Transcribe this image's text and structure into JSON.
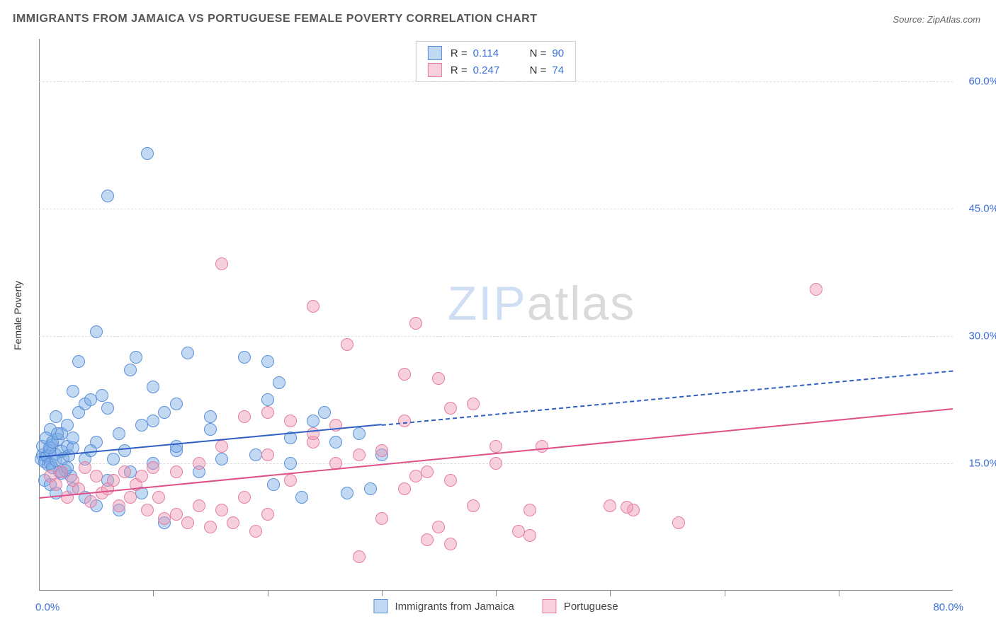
{
  "title": "IMMIGRANTS FROM JAMAICA VS PORTUGUESE FEMALE POVERTY CORRELATION CHART",
  "source": "Source: ZipAtlas.com",
  "y_axis_label": "Female Poverty",
  "watermark": {
    "zip": "ZIP",
    "atlas": "atlas"
  },
  "xlim": [
    0,
    80
  ],
  "ylim": [
    0,
    65
  ],
  "y_ticks": [
    15.0,
    30.0,
    45.0,
    60.0
  ],
  "y_tick_labels": [
    "15.0%",
    "30.0%",
    "45.0%",
    "60.0%"
  ],
  "x_ticks": [
    10,
    20,
    30,
    40,
    50,
    60,
    70
  ],
  "x_min_label": "0.0%",
  "x_max_label": "80.0%",
  "series": [
    {
      "name": "Immigrants from Jamaica",
      "fill": "rgba(120,170,230,0.45)",
      "stroke": "#5b8fd6",
      "trend_color": "#2f5fc4",
      "trend_width": 2,
      "trend_solid_until_x": 30,
      "trend_start": {
        "x": 0,
        "y": 15.8
      },
      "trend_end": {
        "x": 80,
        "y": 26.0
      },
      "R": "0.114",
      "N": "90",
      "points": [
        [
          0.2,
          15.5
        ],
        [
          0.3,
          16.0
        ],
        [
          0.5,
          15.2
        ],
        [
          0.7,
          15.9
        ],
        [
          0.8,
          14.8
        ],
        [
          0.9,
          16.5
        ],
        [
          1.0,
          15.0
        ],
        [
          1.1,
          17.2
        ],
        [
          1.2,
          14.5
        ],
        [
          1.4,
          16.1
        ],
        [
          1.5,
          15.3
        ],
        [
          1.7,
          17.8
        ],
        [
          1.8,
          14.0
        ],
        [
          2.0,
          16.4
        ],
        [
          2.1,
          15.6
        ],
        [
          2.3,
          14.2
        ],
        [
          2.5,
          17.0
        ],
        [
          2.6,
          15.9
        ],
        [
          2.8,
          13.5
        ],
        [
          3.0,
          16.8
        ],
        [
          1.0,
          19.0
        ],
        [
          1.5,
          20.5
        ],
        [
          2.0,
          18.5
        ],
        [
          2.5,
          19.5
        ],
        [
          3.0,
          18.0
        ],
        [
          3.5,
          21.0
        ],
        [
          4.0,
          22.0
        ],
        [
          4.5,
          22.5
        ],
        [
          5.0,
          17.5
        ],
        [
          5.5,
          23.0
        ],
        [
          3.0,
          12.0
        ],
        [
          4.0,
          11.0
        ],
        [
          5.0,
          10.0
        ],
        [
          6.0,
          13.0
        ],
        [
          7.0,
          9.5
        ],
        [
          8.0,
          14.0
        ],
        [
          9.0,
          11.5
        ],
        [
          10.0,
          15.0
        ],
        [
          11.0,
          8.0
        ],
        [
          12.0,
          16.5
        ],
        [
          6.0,
          21.5
        ],
        [
          7.0,
          18.5
        ],
        [
          8.0,
          26.0
        ],
        [
          9.0,
          19.5
        ],
        [
          10.0,
          20.0
        ],
        [
          11.0,
          21.0
        ],
        [
          12.0,
          17.0
        ],
        [
          13.0,
          28.0
        ],
        [
          14.0,
          14.0
        ],
        [
          15.0,
          19.0
        ],
        [
          3.5,
          27.0
        ],
        [
          5.0,
          30.5
        ],
        [
          8.5,
          27.5
        ],
        [
          10.0,
          24.0
        ],
        [
          12.0,
          22.0
        ],
        [
          15.0,
          20.5
        ],
        [
          16.0,
          15.5
        ],
        [
          18.0,
          27.5
        ],
        [
          19.0,
          16.0
        ],
        [
          20.0,
          27.0
        ],
        [
          20.0,
          22.5
        ],
        [
          21.0,
          24.5
        ],
        [
          22.0,
          18.0
        ],
        [
          20.5,
          12.5
        ],
        [
          22.0,
          15.0
        ],
        [
          23.0,
          11.0
        ],
        [
          24.0,
          20.0
        ],
        [
          25.0,
          21.0
        ],
        [
          26.0,
          17.5
        ],
        [
          27.0,
          11.5
        ],
        [
          28.0,
          18.5
        ],
        [
          29.0,
          12.0
        ],
        [
          30.0,
          16.0
        ],
        [
          9.5,
          51.5
        ],
        [
          6.0,
          46.5
        ],
        [
          0.5,
          13.0
        ],
        [
          1.0,
          12.5
        ],
        [
          1.5,
          11.5
        ],
        [
          2.0,
          13.8
        ],
        [
          2.5,
          14.5
        ],
        [
          0.3,
          17.0
        ],
        [
          0.6,
          18.0
        ],
        [
          0.9,
          16.8
        ],
        [
          1.2,
          17.5
        ],
        [
          1.6,
          18.5
        ],
        [
          4.0,
          15.5
        ],
        [
          4.5,
          16.5
        ],
        [
          6.5,
          15.5
        ],
        [
          7.5,
          16.5
        ],
        [
          3.0,
          23.5
        ]
      ]
    },
    {
      "name": "Portuguese",
      "fill": "rgba(240,150,180,0.45)",
      "stroke": "#e37fa4",
      "trend_color": "#e05088",
      "trend_width": 2.5,
      "trend_solid_until_x": 80,
      "trend_start": {
        "x": 0,
        "y": 11.0
      },
      "trend_end": {
        "x": 80,
        "y": 21.5
      },
      "R": "0.247",
      "N": "74",
      "points": [
        [
          1.0,
          13.5
        ],
        [
          1.5,
          12.5
        ],
        [
          2.0,
          14.0
        ],
        [
          2.5,
          11.0
        ],
        [
          3.0,
          13.0
        ],
        [
          3.5,
          12.0
        ],
        [
          4.0,
          14.5
        ],
        [
          4.5,
          10.5
        ],
        [
          5.0,
          13.5
        ],
        [
          5.5,
          11.5
        ],
        [
          6.0,
          12.0
        ],
        [
          6.5,
          13.0
        ],
        [
          7.0,
          10.0
        ],
        [
          7.5,
          14.0
        ],
        [
          8.0,
          11.0
        ],
        [
          8.5,
          12.5
        ],
        [
          9.0,
          13.5
        ],
        [
          9.5,
          9.5
        ],
        [
          10.0,
          14.5
        ],
        [
          10.5,
          11.0
        ],
        [
          11.0,
          8.5
        ],
        [
          12.0,
          9.0
        ],
        [
          13.0,
          8.0
        ],
        [
          14.0,
          10.0
        ],
        [
          15.0,
          7.5
        ],
        [
          16.0,
          9.5
        ],
        [
          17.0,
          8.0
        ],
        [
          18.0,
          11.0
        ],
        [
          19.0,
          7.0
        ],
        [
          20.0,
          9.0
        ],
        [
          12.0,
          14.0
        ],
        [
          14.0,
          15.0
        ],
        [
          16.0,
          17.0
        ],
        [
          18.0,
          20.5
        ],
        [
          20.0,
          16.0
        ],
        [
          22.0,
          13.0
        ],
        [
          24.0,
          17.5
        ],
        [
          26.0,
          15.0
        ],
        [
          30.0,
          16.5
        ],
        [
          32.0,
          20.0
        ],
        [
          16.0,
          38.5
        ],
        [
          24.0,
          33.5
        ],
        [
          27.0,
          29.0
        ],
        [
          32.0,
          25.5
        ],
        [
          33.0,
          31.5
        ],
        [
          35.0,
          25.0
        ],
        [
          36.0,
          21.5
        ],
        [
          34.0,
          6.0
        ],
        [
          28.0,
          4.0
        ],
        [
          36.0,
          5.5
        ],
        [
          33.0,
          13.5
        ],
        [
          35.0,
          7.5
        ],
        [
          38.0,
          10.0
        ],
        [
          40.0,
          15.0
        ],
        [
          38.0,
          22.0
        ],
        [
          40.0,
          17.0
        ],
        [
          42.0,
          7.0
        ],
        [
          43.0,
          9.5
        ],
        [
          44.0,
          17.0
        ],
        [
          43.0,
          6.5
        ],
        [
          50.0,
          10.0
        ],
        [
          52.0,
          9.5
        ],
        [
          51.5,
          9.8
        ],
        [
          56.0,
          8.0
        ],
        [
          68.0,
          35.5
        ],
        [
          20.0,
          21.0
        ],
        [
          22.0,
          20.0
        ],
        [
          24.0,
          18.5
        ],
        [
          26.0,
          19.5
        ],
        [
          28.0,
          16.0
        ],
        [
          30.0,
          8.5
        ],
        [
          32.0,
          12.0
        ],
        [
          34.0,
          14.0
        ],
        [
          36.0,
          13.0
        ]
      ]
    }
  ],
  "legend_box_labels": {
    "R": "R  =",
    "N": "N  ="
  },
  "bottom_legend": [
    {
      "label": "Immigrants from Jamaica"
    },
    {
      "label": "Portuguese"
    }
  ]
}
